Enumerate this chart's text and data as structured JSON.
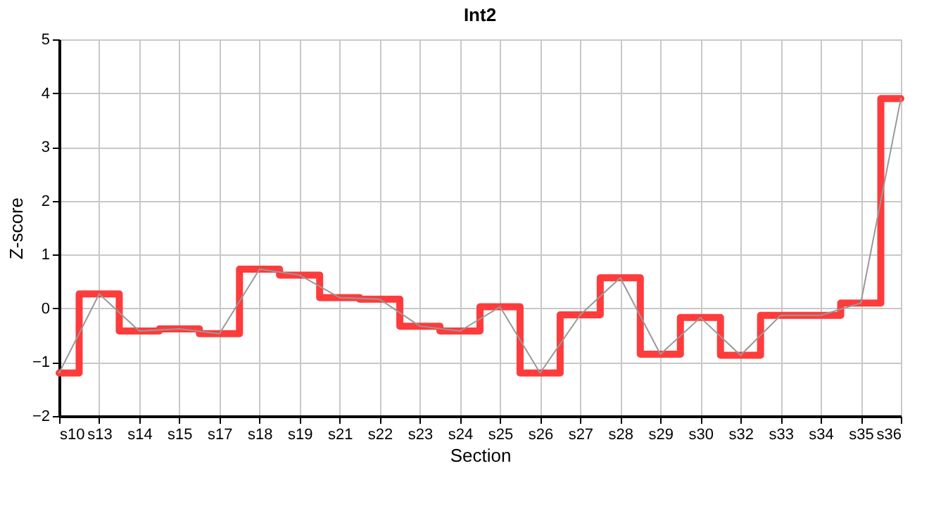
{
  "chart_data": {
    "type": "line",
    "title": "Int2",
    "xlabel": "Section",
    "ylabel": "Z-score",
    "categories": [
      "s10",
      "s13",
      "s14",
      "s15",
      "s17",
      "s18",
      "s19",
      "s21",
      "s22",
      "s23",
      "s24",
      "s25",
      "s26",
      "s27",
      "s28",
      "s29",
      "s30",
      "s32",
      "s33",
      "s34",
      "s35",
      "s36"
    ],
    "series": [
      {
        "type": "step",
        "color": "#ff3b3b",
        "values": [
          -1.2,
          0.27,
          -0.42,
          -0.38,
          -0.47,
          0.73,
          0.62,
          0.2,
          0.17,
          -0.33,
          -0.42,
          0.03,
          -1.2,
          -0.12,
          0.57,
          -0.85,
          -0.17,
          -0.87,
          -0.13,
          -0.13,
          0.1,
          3.9
        ]
      },
      {
        "color": "#999999",
        "values": [
          -1.2,
          0.27,
          -0.42,
          -0.38,
          -0.47,
          0.73,
          0.62,
          0.2,
          0.17,
          -0.33,
          -0.42,
          0.03,
          -1.2,
          -0.12,
          0.57,
          -0.85,
          -0.17,
          -0.87,
          -0.13,
          -0.13,
          0.1,
          3.9
        ]
      }
    ],
    "ylim": [
      -2,
      5
    ],
    "yticks": [
      -2,
      -1,
      0,
      1,
      2,
      3,
      4,
      5
    ],
    "grid": true,
    "legend": false,
    "marker": "none",
    "line_style": "solid"
  }
}
